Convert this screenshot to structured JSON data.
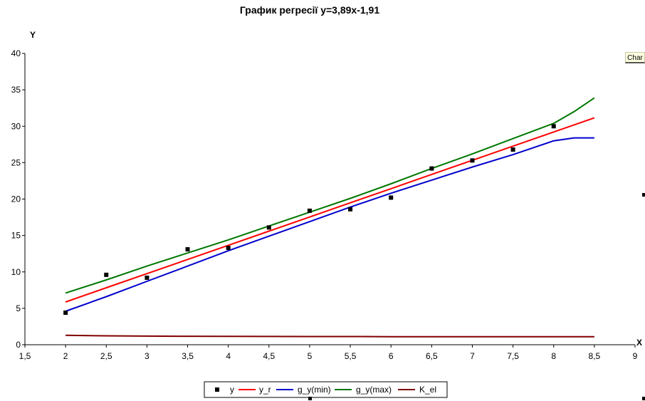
{
  "tab_label": "Char",
  "chart_data": {
    "type": "line",
    "title": "График регресії у=3,89х-1,91",
    "xlabel": "X",
    "ylabel": "Y",
    "xlim": [
      1.5,
      9
    ],
    "ylim": [
      0,
      40
    ],
    "x_ticks": [
      "1,5",
      "2",
      "2,5",
      "3",
      "3,5",
      "4",
      "4,5",
      "5",
      "5,5",
      "6",
      "6,5",
      "7",
      "7,5",
      "8",
      "8,5",
      "9"
    ],
    "y_ticks": [
      "0",
      "5",
      "10",
      "15",
      "20",
      "25",
      "30",
      "35",
      "40"
    ],
    "legend_position": "bottom",
    "grid": false,
    "series": [
      {
        "name": "y",
        "style": "markers",
        "color": "#000000",
        "x": [
          2,
          2.5,
          3,
          3.5,
          4,
          4.5,
          5,
          5.5,
          6,
          6.5,
          7,
          7.5,
          8
        ],
        "y": [
          4.4,
          9.6,
          9.2,
          13.1,
          13.3,
          16.1,
          18.4,
          18.6,
          20.2,
          24.2,
          25.3,
          26.8,
          30.0
        ]
      },
      {
        "name": "y_r",
        "style": "line",
        "color": "#ff0000",
        "x": [
          2,
          2.5,
          3,
          3.5,
          4,
          4.5,
          5,
          5.5,
          6,
          6.5,
          7,
          7.5,
          8,
          8.5
        ],
        "y": [
          5.87,
          7.82,
          9.76,
          11.71,
          13.65,
          15.6,
          17.54,
          19.49,
          21.43,
          23.38,
          25.32,
          27.27,
          29.21,
          31.16
        ]
      },
      {
        "name": "g_y(min)",
        "style": "line",
        "color": "#0000cc",
        "x": [
          2,
          2.5,
          3,
          3.5,
          4,
          4.5,
          5,
          5.5,
          6,
          6.5,
          7,
          7.5,
          8,
          8.25,
          8.5
        ],
        "y": [
          4.6,
          6.6,
          8.7,
          10.8,
          12.9,
          14.9,
          16.9,
          18.9,
          20.8,
          22.6,
          24.4,
          26.1,
          28.0,
          28.4,
          28.4
        ]
      },
      {
        "name": "g_y(max)",
        "style": "line",
        "color": "#007700",
        "x": [
          2,
          2.5,
          3,
          3.5,
          4,
          4.5,
          5,
          5.5,
          6,
          6.5,
          7,
          7.5,
          8,
          8.25,
          8.5
        ],
        "y": [
          7.1,
          8.9,
          10.8,
          12.6,
          14.4,
          16.3,
          18.2,
          20.1,
          22.1,
          24.2,
          26.2,
          28.3,
          30.4,
          32.0,
          33.9
        ]
      },
      {
        "name": "K_el",
        "style": "line",
        "color": "#800000",
        "x": [
          2,
          2.5,
          3,
          3.5,
          4,
          4.5,
          5,
          5.5,
          6,
          6.5,
          7,
          7.5,
          8,
          8.5
        ],
        "y": [
          1.3,
          1.22,
          1.18,
          1.16,
          1.14,
          1.13,
          1.12,
          1.12,
          1.11,
          1.11,
          1.1,
          1.1,
          1.1,
          1.1
        ]
      }
    ]
  }
}
